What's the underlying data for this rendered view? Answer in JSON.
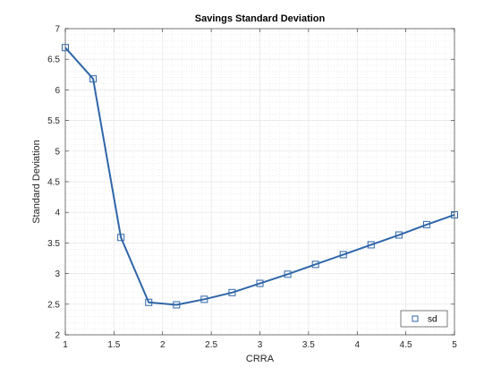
{
  "chart_data": {
    "type": "line",
    "title": "Savings Standard Deviation",
    "xlabel": "CRRA",
    "ylabel": "Standard Deviation",
    "xlim": [
      1,
      5
    ],
    "ylim": [
      2,
      7
    ],
    "xticks": [
      "1",
      "1.5",
      "2",
      "2.5",
      "3",
      "3.5",
      "4",
      "4.5",
      "5"
    ],
    "yticks": [
      "2",
      "2.5",
      "3",
      "3.5",
      "4",
      "4.5",
      "5",
      "5.5",
      "6",
      "6.5",
      "7"
    ],
    "grid": true,
    "minor_grid": true,
    "legend_position": "bottom-right",
    "series": [
      {
        "name": "sd",
        "color": "#2f66a8",
        "marker": "square",
        "x": [
          1.0,
          1.2857,
          1.5714,
          1.8571,
          2.1429,
          2.4286,
          2.7143,
          3.0,
          3.2857,
          3.5714,
          3.8571,
          4.1429,
          4.4286,
          4.7143,
          5.0
        ],
        "y": [
          6.69,
          6.18,
          3.59,
          2.53,
          2.49,
          2.58,
          2.69,
          2.84,
          2.99,
          3.15,
          3.31,
          3.47,
          3.63,
          3.8,
          3.96
        ]
      }
    ]
  }
}
